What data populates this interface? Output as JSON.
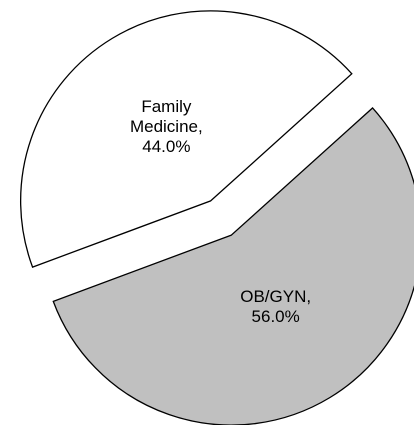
{
  "chart_data": {
    "type": "pie",
    "categories": [
      "Family Medicine,",
      "OB/GYN,"
    ],
    "values": [
      44.0,
      56.0
    ],
    "value_labels": [
      "44.0%",
      "56.0%"
    ],
    "colors": [
      "#ffffff",
      "#c0c0c0"
    ],
    "exploded": true
  }
}
